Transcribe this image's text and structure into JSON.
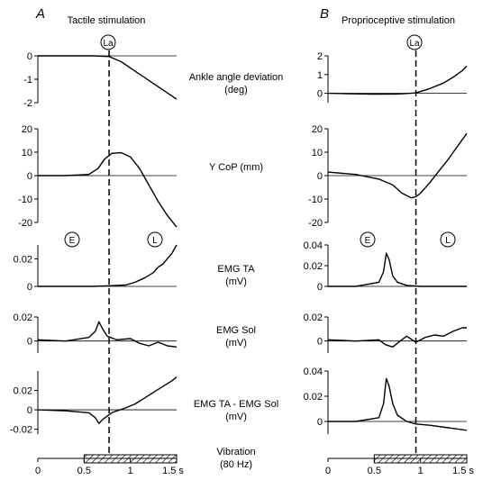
{
  "panels": [
    {
      "letter": "A",
      "title": "Tactile stimulation",
      "la_marker": "La",
      "e_marker": "E",
      "l_marker": "L",
      "x_ticks": [
        "0",
        "0.5",
        "1",
        "1.5 s"
      ]
    },
    {
      "letter": "B",
      "title": "Proprioceptive stimulation",
      "la_marker": "La",
      "e_marker": "E",
      "l_marker": "L",
      "x_ticks": [
        "0",
        "0.5",
        "1",
        "1.5 s"
      ]
    }
  ],
  "row_labels": {
    "angle": [
      "Ankle angle deviation",
      "(deg)"
    ],
    "cop": [
      "Y CoP (mm)"
    ],
    "ta": [
      "EMG TA",
      "(mV)"
    ],
    "sol": [
      "EMG Sol",
      "(mV)"
    ],
    "diff": [
      "EMG TA - EMG Sol",
      "(mV)"
    ],
    "vib": [
      "Vibration",
      "(80 Hz)"
    ]
  },
  "chart_data": [
    {
      "type": "line",
      "panel": "A",
      "x_unit": "s",
      "xlim": [
        0,
        1.5
      ],
      "la_time": 0.77,
      "vibration": {
        "start": 0.5,
        "end": 1.5
      },
      "traces": {
        "angle": {
          "ylim": [
            -2,
            0
          ],
          "ticks": [
            "0",
            "-1",
            "-2"
          ],
          "x": [
            0,
            0.3,
            0.6,
            0.77,
            0.9,
            1.05,
            1.2,
            1.35,
            1.5
          ],
          "y": [
            0,
            0,
            0,
            -0.03,
            -0.25,
            -0.65,
            -1.05,
            -1.45,
            -1.85
          ]
        },
        "cop": {
          "ylim": [
            -20,
            20
          ],
          "ticks": [
            "20",
            "10",
            "0",
            "-10",
            "-20"
          ],
          "x": [
            0,
            0.3,
            0.55,
            0.65,
            0.72,
            0.8,
            0.9,
            1.0,
            1.1,
            1.2,
            1.3,
            1.4,
            1.5
          ],
          "y": [
            0,
            0,
            0.5,
            3,
            7,
            9.5,
            9.8,
            8,
            3,
            -4,
            -11,
            -17,
            -22
          ]
        },
        "ta": {
          "ylim": [
            0,
            0.03
          ],
          "ticks": [
            "0.02",
            "0"
          ],
          "x": [
            0,
            0.3,
            0.6,
            0.8,
            0.95,
            1.05,
            1.15,
            1.25,
            1.3,
            1.35,
            1.4,
            1.45,
            1.5
          ],
          "y": [
            0,
            0,
            0,
            0.0005,
            0.001,
            0.003,
            0.006,
            0.01,
            0.014,
            0.016,
            0.02,
            0.024,
            0.03
          ]
        },
        "sol": {
          "ylim": [
            -0.01,
            0.02
          ],
          "ticks": [
            "0.02",
            "0"
          ],
          "x": [
            0,
            0.3,
            0.55,
            0.62,
            0.66,
            0.7,
            0.75,
            0.85,
            1.0,
            1.1,
            1.2,
            1.3,
            1.4,
            1.5
          ],
          "y": [
            0.001,
            0,
            0.003,
            0.008,
            0.016,
            0.01,
            0.004,
            0.001,
            0.002,
            -0.002,
            -0.004,
            -0.001,
            -0.004,
            -0.005
          ]
        },
        "diff": {
          "ylim": [
            -0.025,
            0.04
          ],
          "ticks": [
            "0.02",
            "0",
            "-0.02"
          ],
          "x": [
            0,
            0.3,
            0.55,
            0.62,
            0.66,
            0.7,
            0.8,
            0.95,
            1.05,
            1.15,
            1.25,
            1.35,
            1.45,
            1.5
          ],
          "y": [
            0,
            -0.001,
            -0.003,
            -0.008,
            -0.014,
            -0.01,
            -0.003,
            0.002,
            0.006,
            0.012,
            0.018,
            0.024,
            0.03,
            0.034
          ]
        }
      }
    },
    {
      "type": "line",
      "panel": "B",
      "x_unit": "s",
      "xlim": [
        0,
        1.5
      ],
      "la_time": 0.95,
      "vibration": {
        "start": 0.5,
        "end": 1.5
      },
      "traces": {
        "angle": {
          "ylim": [
            -0.5,
            2
          ],
          "ticks": [
            "2",
            "1",
            "0"
          ],
          "x": [
            0,
            0.2,
            0.5,
            0.75,
            0.95,
            1.1,
            1.25,
            1.35,
            1.45,
            1.5
          ],
          "y": [
            0,
            -0.02,
            -0.05,
            -0.04,
            0.02,
            0.25,
            0.55,
            0.85,
            1.2,
            1.45
          ]
        },
        "cop": {
          "ylim": [
            -20,
            20
          ],
          "ticks": [
            "20",
            "10",
            "0",
            "-10",
            "-20"
          ],
          "x": [
            0,
            0.3,
            0.55,
            0.7,
            0.8,
            0.9,
            0.95,
            1.0,
            1.1,
            1.2,
            1.3,
            1.4,
            1.5
          ],
          "y": [
            1.5,
            0.5,
            -1.5,
            -4,
            -7.5,
            -9.5,
            -9,
            -7.5,
            -3,
            2,
            7,
            12.5,
            18
          ]
        },
        "ta": {
          "ylim": [
            0,
            0.04
          ],
          "ticks": [
            "0.04",
            "0.02",
            "0"
          ],
          "x": [
            0,
            0.3,
            0.55,
            0.6,
            0.63,
            0.66,
            0.7,
            0.75,
            0.85,
            1.0,
            1.5
          ],
          "y": [
            0,
            0,
            0.004,
            0.014,
            0.032,
            0.026,
            0.01,
            0.004,
            0.001,
            0,
            0
          ]
        },
        "sol": {
          "ylim": [
            -0.01,
            0.02
          ],
          "ticks": [
            "0.02",
            "0"
          ],
          "x": [
            0,
            0.3,
            0.55,
            0.62,
            0.7,
            0.78,
            0.85,
            0.95,
            1.05,
            1.15,
            1.25,
            1.35,
            1.45,
            1.5
          ],
          "y": [
            0.001,
            0,
            0.001,
            -0.003,
            -0.005,
            0,
            0.004,
            -0.001,
            0.003,
            0.005,
            0.004,
            0.008,
            0.011,
            0.011
          ]
        },
        "diff": {
          "ylim": [
            -0.01,
            0.04
          ],
          "ticks": [
            "0.04",
            "0.02",
            "0"
          ],
          "x": [
            0,
            0.3,
            0.55,
            0.6,
            0.63,
            0.66,
            0.7,
            0.75,
            0.85,
            0.95,
            1.1,
            1.3,
            1.5
          ],
          "y": [
            0,
            0,
            0.003,
            0.014,
            0.034,
            0.028,
            0.014,
            0.005,
            0,
            -0.002,
            -0.003,
            -0.005,
            -0.007
          ]
        }
      }
    }
  ]
}
